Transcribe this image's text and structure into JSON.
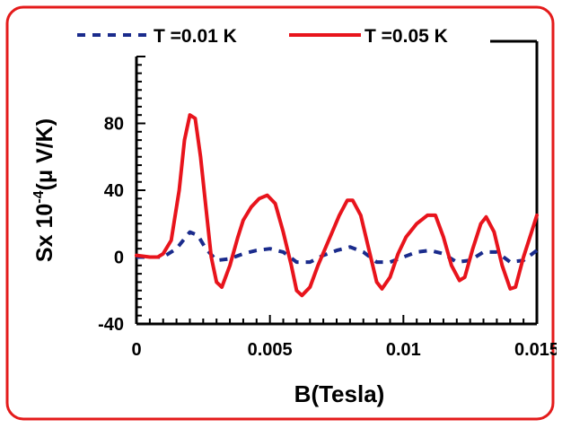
{
  "chart_data": {
    "type": "line",
    "xlabel": "B(Tesla)",
    "ylabel": "Sx 10",
    "ylabel_exponent": "-4",
    "ylabel_unit": "(μ V/K)",
    "xlim": [
      0,
      0.015
    ],
    "ylim": [
      -40,
      120
    ],
    "x_ticks": [
      "0",
      "0.005",
      "0.01",
      "0.015"
    ],
    "y_ticks": [
      "-40",
      "0",
      "40",
      "80"
    ],
    "legend_position": "top",
    "grid": false,
    "series": [
      {
        "name": "T =0.01 K",
        "color": "#1a2b8c",
        "style": "dashed",
        "points": [
          [
            0,
            0
          ],
          [
            0.0005,
            0
          ],
          [
            0.001,
            0
          ],
          [
            0.0015,
            5
          ],
          [
            0.002,
            15
          ],
          [
            0.0023,
            13
          ],
          [
            0.0026,
            5
          ],
          [
            0.003,
            -2
          ],
          [
            0.0035,
            -1
          ],
          [
            0.004,
            2
          ],
          [
            0.0045,
            4
          ],
          [
            0.005,
            5
          ],
          [
            0.0055,
            3
          ],
          [
            0.006,
            -3
          ],
          [
            0.0065,
            -3
          ],
          [
            0.007,
            1
          ],
          [
            0.0075,
            4
          ],
          [
            0.008,
            6
          ],
          [
            0.0085,
            3
          ],
          [
            0.009,
            -3
          ],
          [
            0.0095,
            -3
          ],
          [
            0.01,
            0
          ],
          [
            0.0105,
            3
          ],
          [
            0.011,
            4
          ],
          [
            0.0115,
            2
          ],
          [
            0.012,
            -3
          ],
          [
            0.0125,
            -2
          ],
          [
            0.013,
            3
          ],
          [
            0.0135,
            3
          ],
          [
            0.014,
            -3
          ],
          [
            0.0145,
            -2
          ],
          [
            0.015,
            4
          ]
        ]
      },
      {
        "name": "T =0.05 K",
        "color": "#e8141c",
        "style": "solid",
        "points": [
          [
            0,
            1
          ],
          [
            0.0005,
            0
          ],
          [
            0.0008,
            0
          ],
          [
            0.001,
            2
          ],
          [
            0.0013,
            10
          ],
          [
            0.0016,
            40
          ],
          [
            0.0018,
            70
          ],
          [
            0.002,
            85
          ],
          [
            0.0022,
            83
          ],
          [
            0.0024,
            60
          ],
          [
            0.0026,
            30
          ],
          [
            0.0028,
            0
          ],
          [
            0.003,
            -15
          ],
          [
            0.0032,
            -18
          ],
          [
            0.0035,
            -5
          ],
          [
            0.0038,
            12
          ],
          [
            0.004,
            22
          ],
          [
            0.0043,
            30
          ],
          [
            0.0046,
            35
          ],
          [
            0.0049,
            37
          ],
          [
            0.0052,
            32
          ],
          [
            0.0055,
            15
          ],
          [
            0.0058,
            -5
          ],
          [
            0.006,
            -20
          ],
          [
            0.0062,
            -23
          ],
          [
            0.0065,
            -18
          ],
          [
            0.0068,
            -5
          ],
          [
            0.0072,
            10
          ],
          [
            0.0076,
            25
          ],
          [
            0.0079,
            34
          ],
          [
            0.0081,
            34
          ],
          [
            0.0084,
            25
          ],
          [
            0.0087,
            5
          ],
          [
            0.009,
            -15
          ],
          [
            0.0092,
            -19
          ],
          [
            0.0095,
            -12
          ],
          [
            0.0098,
            2
          ],
          [
            0.0101,
            12
          ],
          [
            0.0105,
            20
          ],
          [
            0.0109,
            25
          ],
          [
            0.0112,
            25
          ],
          [
            0.0115,
            12
          ],
          [
            0.0118,
            -5
          ],
          [
            0.0121,
            -14
          ],
          [
            0.0123,
            -12
          ],
          [
            0.0126,
            5
          ],
          [
            0.0129,
            20
          ],
          [
            0.0131,
            24
          ],
          [
            0.0134,
            15
          ],
          [
            0.0137,
            -5
          ],
          [
            0.014,
            -19
          ],
          [
            0.0142,
            -18
          ],
          [
            0.0145,
            0
          ],
          [
            0.0148,
            15
          ],
          [
            0.015,
            25
          ]
        ]
      }
    ]
  }
}
